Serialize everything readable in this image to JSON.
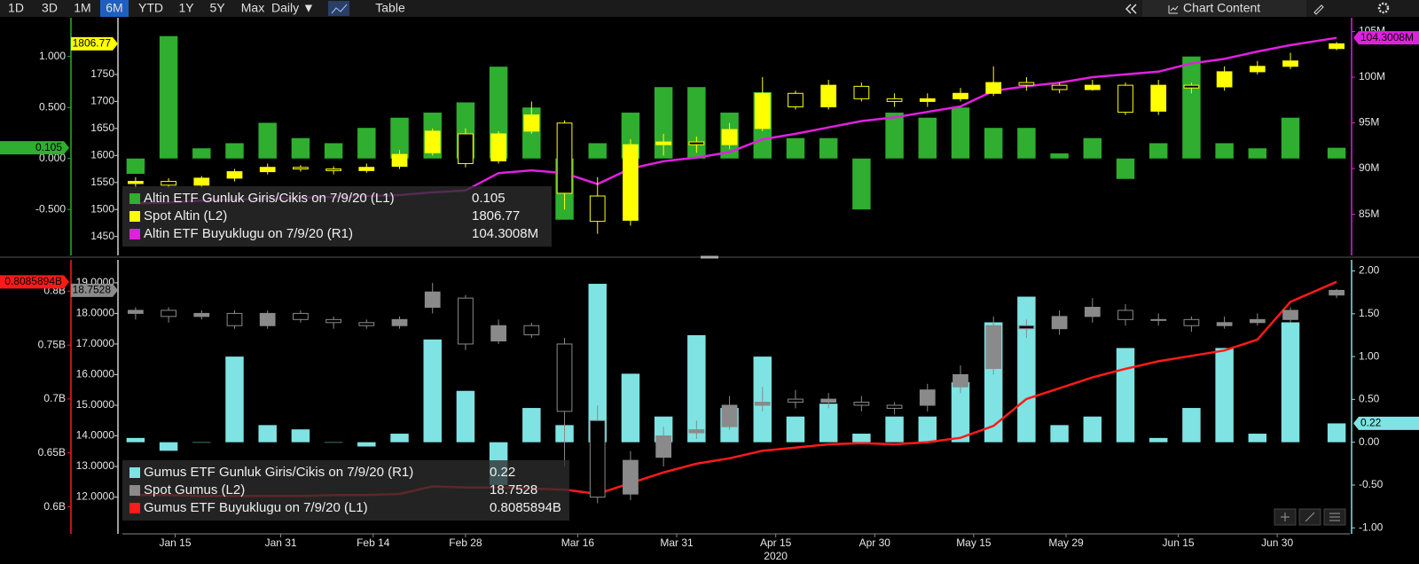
{
  "toolbar": {
    "ranges": [
      "1D",
      "3D",
      "1M",
      "6M",
      "YTD",
      "1Y",
      "5Y",
      "Max"
    ],
    "active": "6M",
    "frequency": "Daily ▼",
    "view": "Table",
    "content": "Chart Content"
  },
  "chart_data": [
    {
      "type": "combo",
      "x": [
        "2020-01-09",
        "2020-01-14",
        "2020-01-19",
        "2020-01-24",
        "2020-01-29",
        "2020-02-03",
        "2020-02-08",
        "2020-02-13",
        "2020-02-18",
        "2020-02-23",
        "2020-02-28",
        "2020-03-04",
        "2020-03-09",
        "2020-03-14",
        "2020-03-19",
        "2020-03-24",
        "2020-03-29",
        "2020-04-03",
        "2020-04-08",
        "2020-04-13",
        "2020-04-18",
        "2020-04-23",
        "2020-04-28",
        "2020-05-03",
        "2020-05-08",
        "2020-05-13",
        "2020-05-18",
        "2020-05-23",
        "2020-05-28",
        "2020-06-02",
        "2020-06-07",
        "2020-06-12",
        "2020-06-17",
        "2020-06-22",
        "2020-06-27",
        "2020-07-02",
        "2020-07-09"
      ],
      "xlim": [
        "2020-01-07",
        "2020-07-11"
      ],
      "ylim": [
        -0.95,
        1.38
      ],
      "yticks": [
        {
          "value": -0.5,
          "label": "-0.500"
        },
        {
          "value": 0,
          "label": "0.000"
        },
        {
          "value": 0.5,
          "label": "0.500"
        },
        {
          "value": 1,
          "label": "1.000"
        }
      ],
      "y2lim": [
        80.5,
        106.5
      ],
      "y2ticks": [
        {
          "value": 85,
          "label": "85M"
        },
        {
          "value": 90,
          "label": "90M"
        },
        {
          "value": 95,
          "label": "95M"
        },
        {
          "value": 100,
          "label": "100M"
        },
        {
          "value": 105,
          "label": "105M"
        }
      ],
      "y3lim": [
        1415,
        1855
      ],
      "y3ticks": [
        1450,
        1500,
        1550,
        1600,
        1650,
        1700,
        1750
      ],
      "series": [
        {
          "name": "Altin ETF Gunluk Giris/Cikis on 7/9/20 (L1)",
          "kind": "bar",
          "axis": "y",
          "color": "#2fae2f",
          "values": [
            -0.15,
            1.2,
            0.1,
            0.15,
            0.35,
            0.2,
            0.15,
            0.3,
            0.4,
            0.45,
            0.55,
            0.9,
            0.5,
            -0.6,
            0.15,
            0.45,
            0.7,
            0.7,
            0.45,
            0.65,
            0.2,
            0.2,
            -0.5,
            0.45,
            0.4,
            0.5,
            0.3,
            0.3,
            0.05,
            0.2,
            -0.2,
            0.15,
            1.0,
            0.15,
            0.1,
            0.4,
            0.105
          ]
        },
        {
          "name": "Spot Altin (L2)",
          "kind": "candlestick",
          "axis": "y3",
          "color": "#ffff00",
          "open": [
            1548,
            1552,
            1545,
            1558,
            1570,
            1578,
            1575,
            1572,
            1580,
            1605,
            1640,
            1590,
            1645,
            1660,
            1525,
            1480,
            1620,
            1625,
            1620,
            1650,
            1715,
            1690,
            1728,
            1705,
            1700,
            1705,
            1715,
            1735,
            1730,
            1722,
            1730,
            1682,
            1730,
            1727,
            1755,
            1765,
            1798
          ],
          "high": [
            1560,
            1558,
            1562,
            1575,
            1585,
            1582,
            1580,
            1585,
            1610,
            1650,
            1650,
            1645,
            1700,
            1665,
            1560,
            1630,
            1640,
            1635,
            1660,
            1745,
            1720,
            1740,
            1735,
            1715,
            1715,
            1725,
            1765,
            1745,
            1735,
            1740,
            1735,
            1740,
            1735,
            1765,
            1775,
            1790,
            1810
          ],
          "low": [
            1540,
            1540,
            1540,
            1552,
            1565,
            1570,
            1565,
            1568,
            1575,
            1600,
            1578,
            1585,
            1640,
            1500,
            1455,
            1470,
            1600,
            1605,
            1612,
            1645,
            1685,
            1685,
            1700,
            1690,
            1690,
            1700,
            1710,
            1720,
            1715,
            1720,
            1675,
            1675,
            1715,
            1720,
            1750,
            1760,
            1795
          ],
          "close": [
            1552,
            1545,
            1558,
            1570,
            1578,
            1575,
            1572,
            1578,
            1602,
            1645,
            1585,
            1640,
            1675,
            1530,
            1478,
            1620,
            1625,
            1620,
            1648,
            1715,
            1690,
            1730,
            1705,
            1700,
            1705,
            1715,
            1735,
            1730,
            1722,
            1730,
            1680,
            1730,
            1725,
            1755,
            1765,
            1775,
            1806.77
          ]
        },
        {
          "name": "Altin ETF Buyuklugu on 7/9/20 (R1)",
          "kind": "line",
          "axis": "y2",
          "color": "#e020e0",
          "values": [
            86.2,
            86.3,
            86.5,
            86.6,
            86.7,
            86.8,
            86.9,
            87.0,
            87.1,
            87.4,
            87.6,
            89.5,
            89.8,
            89.5,
            88.3,
            90.0,
            90.8,
            91.2,
            91.8,
            93.2,
            93.8,
            94.5,
            95.2,
            95.6,
            96.2,
            96.8,
            98.5,
            99.0,
            99.4,
            100.0,
            100.3,
            100.6,
            101.5,
            102.0,
            102.8,
            103.5,
            104.3008
          ],
          "value_labels": [
            null,
            null,
            null,
            null,
            null,
            null,
            null,
            null,
            null,
            null,
            null,
            null,
            null,
            null,
            null,
            null,
            null,
            null,
            null,
            null,
            null,
            null,
            null,
            null,
            null,
            null,
            null,
            null,
            null,
            null,
            null,
            null,
            null,
            null,
            null,
            null,
            "104.3008M"
          ]
        }
      ]
    },
    {
      "type": "combo",
      "x": [
        "2020-01-09",
        "2020-01-14",
        "2020-01-19",
        "2020-01-24",
        "2020-01-29",
        "2020-02-03",
        "2020-02-08",
        "2020-02-13",
        "2020-02-18",
        "2020-02-23",
        "2020-02-28",
        "2020-03-04",
        "2020-03-09",
        "2020-03-14",
        "2020-03-19",
        "2020-03-24",
        "2020-03-29",
        "2020-04-03",
        "2020-04-08",
        "2020-04-13",
        "2020-04-18",
        "2020-04-23",
        "2020-04-28",
        "2020-05-03",
        "2020-05-08",
        "2020-05-13",
        "2020-05-18",
        "2020-05-23",
        "2020-05-28",
        "2020-06-02",
        "2020-06-07",
        "2020-06-12",
        "2020-06-17",
        "2020-06-22",
        "2020-06-27",
        "2020-07-02",
        "2020-07-09"
      ],
      "xlim": [
        "2020-01-07",
        "2020-07-11"
      ],
      "xticks": [
        {
          "value": "2020-01-15",
          "label": "Jan 15"
        },
        {
          "value": "2020-01-31",
          "label": "Jan 31"
        },
        {
          "value": "2020-02-14",
          "label": "Feb 14"
        },
        {
          "value": "2020-02-28",
          "label": "Feb 28"
        },
        {
          "value": "2020-03-16",
          "label": "Mar 16"
        },
        {
          "value": "2020-03-31",
          "label": "Mar 31"
        },
        {
          "value": "2020-04-15",
          "label": "Apr 15"
        },
        {
          "value": "2020-04-30",
          "label": "Apr 30"
        },
        {
          "value": "2020-05-15",
          "label": "May 15"
        },
        {
          "value": "2020-05-29",
          "label": "May 29"
        },
        {
          "value": "2020-06-15",
          "label": "Jun 15"
        },
        {
          "value": "2020-06-30",
          "label": "Jun 30"
        }
      ],
      "xlabel": "2020",
      "ylim": [
        0.575,
        0.829
      ],
      "yticks": [
        {
          "value": 0.6,
          "label": "0.6B"
        },
        {
          "value": 0.65,
          "label": "0.65B"
        },
        {
          "value": 0.7,
          "label": "0.7B"
        },
        {
          "value": 0.75,
          "label": "0.75B"
        },
        {
          "value": 0.8,
          "label": "0.8B"
        }
      ],
      "y2lim": [
        -1.07,
        2.13
      ],
      "y2ticks": [
        {
          "value": -1,
          "label": "-1.00"
        },
        {
          "value": -0.5,
          "label": "-0.50"
        },
        {
          "value": 0,
          "label": "0.00"
        },
        {
          "value": 0.5,
          "label": "0.50"
        },
        {
          "value": 1,
          "label": "1.00"
        },
        {
          "value": 1.5,
          "label": "1.50"
        },
        {
          "value": 2,
          "label": "2.00"
        }
      ],
      "y3lim": [
        10.8,
        19.75
      ],
      "y3ticks": [
        {
          "value": 12,
          "label": "12.0000"
        },
        {
          "value": 13,
          "label": "13.0000"
        },
        {
          "value": 14,
          "label": "14.0000"
        },
        {
          "value": 15,
          "label": "15.0000"
        },
        {
          "value": 16,
          "label": "16.0000"
        },
        {
          "value": 17,
          "label": "17.0000"
        },
        {
          "value": 18,
          "label": "18.0000"
        },
        {
          "value": 19,
          "label": "19.0000"
        }
      ],
      "series": [
        {
          "name": "Gumus ETF Gunluk Giris/Cikis on 7/9/20 (R1)",
          "kind": "bar",
          "axis": "y2",
          "color": "#7fe3e3",
          "values": [
            0.05,
            -0.1,
            0.0,
            1.0,
            0.2,
            0.15,
            0.0,
            -0.05,
            0.1,
            1.2,
            0.6,
            -0.5,
            0.4,
            0.2,
            1.85,
            0.8,
            0.3,
            1.25,
            0.4,
            1.0,
            0.3,
            0.45,
            0.1,
            0.3,
            0.3,
            0.7,
            1.4,
            1.7,
            0.2,
            0.3,
            1.1,
            0.05,
            0.4,
            1.1,
            0.1,
            1.4,
            0.22
          ]
        },
        {
          "name": "Spot Gumus (L2)",
          "kind": "candlestick",
          "axis": "y3",
          "color": "#8a8a8a",
          "open": [
            18.0,
            18.1,
            17.9,
            18.0,
            17.6,
            18.0,
            17.8,
            17.7,
            17.6,
            18.2,
            18.5,
            17.1,
            17.6,
            17.0,
            14.5,
            12.1,
            13.3,
            14.1,
            14.3,
            15.0,
            15.2,
            15.1,
            15.1,
            15.0,
            15.0,
            15.6,
            16.2,
            17.6,
            17.5,
            17.9,
            18.1,
            17.8,
            17.8,
            17.6,
            17.7,
            17.8,
            18.6
          ],
          "high": [
            18.2,
            18.2,
            18.1,
            18.1,
            18.1,
            18.1,
            17.9,
            17.8,
            17.9,
            19.0,
            18.6,
            17.8,
            17.7,
            17.2,
            15.0,
            13.5,
            14.3,
            14.5,
            15.3,
            15.6,
            15.5,
            15.4,
            15.3,
            15.1,
            15.7,
            16.3,
            17.9,
            17.8,
            18.1,
            18.5,
            18.3,
            18.0,
            17.9,
            17.9,
            18.0,
            18.2,
            18.8
          ],
          "low": [
            17.8,
            17.7,
            17.8,
            17.5,
            17.5,
            17.7,
            17.5,
            17.5,
            17.5,
            18.0,
            16.8,
            17.0,
            17.2,
            13.0,
            11.8,
            11.9,
            13.0,
            13.9,
            14.2,
            14.8,
            14.9,
            14.9,
            14.8,
            14.7,
            14.8,
            15.4,
            16.0,
            17.2,
            17.3,
            17.7,
            17.6,
            17.6,
            17.4,
            17.5,
            17.6,
            17.7,
            18.5
          ],
          "close": [
            18.1,
            17.9,
            18.0,
            17.6,
            18.0,
            17.8,
            17.7,
            17.6,
            17.8,
            18.7,
            17.0,
            17.6,
            17.3,
            14.8,
            12.0,
            13.2,
            14.0,
            14.2,
            15.0,
            15.1,
            15.1,
            15.2,
            15.0,
            14.9,
            15.5,
            16.0,
            17.6,
            17.5,
            17.9,
            18.2,
            17.8,
            17.8,
            17.6,
            17.7,
            17.8,
            18.1,
            18.7528
          ]
        },
        {
          "name": "Gumus ETF Buyuklugu on 7/9/20 (L1)",
          "kind": "line",
          "axis": "y",
          "color": "#ff1a1a",
          "values": [
            0.611,
            0.611,
            0.61,
            0.61,
            0.61,
            0.61,
            0.611,
            0.611,
            0.612,
            0.619,
            0.618,
            0.618,
            0.617,
            0.616,
            0.612,
            0.622,
            0.632,
            0.64,
            0.645,
            0.652,
            0.655,
            0.658,
            0.659,
            0.658,
            0.66,
            0.664,
            0.675,
            0.7,
            0.71,
            0.72,
            0.728,
            0.735,
            0.74,
            0.745,
            0.755,
            0.79,
            0.8085894
          ],
          "value_labels": [
            null,
            null,
            null,
            null,
            null,
            null,
            null,
            null,
            null,
            null,
            null,
            null,
            null,
            null,
            null,
            null,
            null,
            null,
            null,
            null,
            null,
            null,
            null,
            null,
            null,
            null,
            null,
            null,
            null,
            null,
            null,
            null,
            null,
            null,
            null,
            null,
            "0.8085894B"
          ]
        }
      ]
    }
  ]
}
